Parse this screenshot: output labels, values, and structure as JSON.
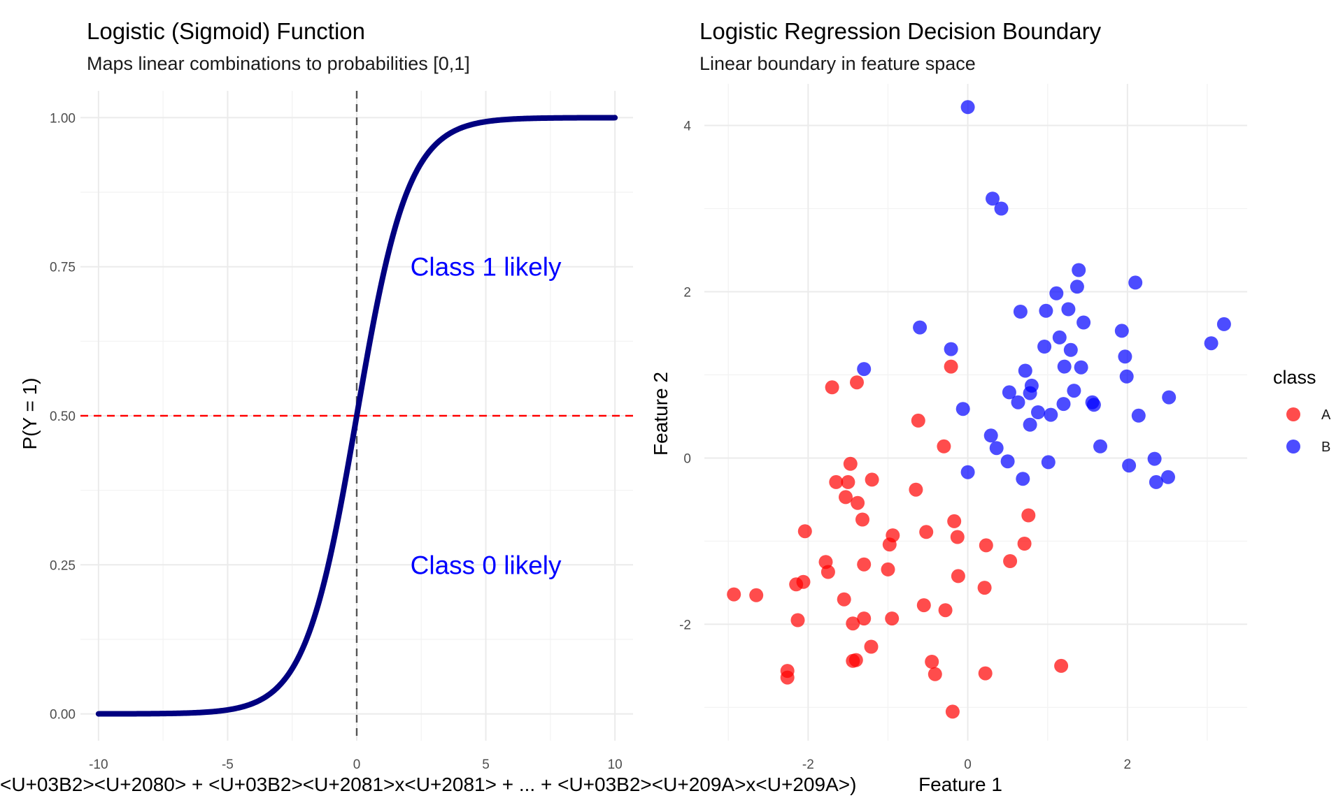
{
  "chart_data": [
    {
      "type": "line",
      "title": "Logistic (Sigmoid) Function",
      "subtitle": "Maps linear combinations to probabilities [0,1]",
      "xlabel": "<U+03B2><U+2080> + <U+03B2><U+2081>x<U+2081> + ... + <U+03B2><U+209A>x<U+209A>)",
      "ylabel": "P(Y = 1)",
      "xlim": [
        -10.7,
        10.7
      ],
      "ylim": [
        -0.045,
        1.045
      ],
      "xticks": [
        -10,
        -5,
        0,
        5,
        10
      ],
      "xtick_labels": [
        "-10",
        "-5",
        "0",
        "5",
        "10"
      ],
      "yticks": [
        0,
        0.25,
        0.5,
        0.75,
        1
      ],
      "ytick_labels": [
        "0.00",
        "0.25",
        "0.50",
        "0.75",
        "1.00"
      ],
      "grid": true,
      "series": [
        {
          "function": "sigmoid",
          "x_range": [
            -10,
            10
          ],
          "color": "#000080"
        }
      ],
      "reference_lines": [
        {
          "orientation": "horizontal",
          "value": 0.5,
          "style": "dashed",
          "color": "#ff0000"
        },
        {
          "orientation": "vertical",
          "value": 0,
          "style": "dashed",
          "color": "#555555"
        }
      ],
      "annotations": [
        {
          "text": "Class 1 likely",
          "x": 5,
          "y": 0.75,
          "color": "#0000ff"
        },
        {
          "text": "Class 0 likely",
          "x": 5,
          "y": 0.25,
          "color": "#0000ff"
        }
      ]
    },
    {
      "type": "scatter",
      "title": "Logistic Regression Decision Boundary",
      "subtitle": "Linear boundary in feature space",
      "xlabel": "Feature 1",
      "ylabel": "Feature 2",
      "xlim": [
        -3.3,
        3.5
      ],
      "ylim": [
        -3.4,
        4.5
      ],
      "xticks": [
        -2,
        0,
        2
      ],
      "xtick_labels": [
        "-2",
        "0",
        "2"
      ],
      "yticks": [
        -2,
        0,
        2,
        4
      ],
      "ytick_labels": [
        "-2",
        "0",
        "2",
        "4"
      ],
      "grid": true,
      "legend": {
        "title": "class",
        "position": "right",
        "entries": [
          {
            "label": "A",
            "color": "#ff0000"
          },
          {
            "label": "B",
            "color": "#0000ff"
          }
        ]
      },
      "series": [
        {
          "name": "A",
          "color": "#ff0000",
          "points": [
            [
              -2.93,
              -1.64
            ],
            [
              -2.65,
              -1.65
            ],
            [
              -2.26,
              -2.56
            ],
            [
              -2.26,
              -2.64
            ],
            [
              -2.15,
              -1.52
            ],
            [
              -2.06,
              -1.49
            ],
            [
              -2.13,
              -1.95
            ],
            [
              -2.04,
              -0.88
            ],
            [
              -1.7,
              0.85
            ],
            [
              -1.39,
              0.91
            ],
            [
              -1.78,
              -1.25
            ],
            [
              -1.75,
              -1.37
            ],
            [
              -1.65,
              -0.29
            ],
            [
              -1.53,
              -0.47
            ],
            [
              -1.5,
              -0.29
            ],
            [
              -1.47,
              -0.07
            ],
            [
              -1.55,
              -1.7
            ],
            [
              -1.44,
              -1.99
            ],
            [
              -1.44,
              -2.44
            ],
            [
              -1.4,
              -2.43
            ],
            [
              -1.38,
              -0.54
            ],
            [
              -1.32,
              -0.74
            ],
            [
              -1.3,
              -1.28
            ],
            [
              -1.3,
              -1.93
            ],
            [
              -1.2,
              -0.26
            ],
            [
              -1.21,
              -2.27
            ],
            [
              -1.0,
              -1.34
            ],
            [
              -0.98,
              -1.04
            ],
            [
              -0.95,
              -1.93
            ],
            [
              -0.94,
              -0.93
            ],
            [
              -0.65,
              -0.38
            ],
            [
              -0.62,
              0.45
            ],
            [
              -0.55,
              -1.77
            ],
            [
              -0.52,
              -0.89
            ],
            [
              -0.45,
              -2.45
            ],
            [
              -0.41,
              -2.6
            ],
            [
              -0.3,
              0.14
            ],
            [
              -0.28,
              -1.83
            ],
            [
              -0.21,
              1.1
            ],
            [
              -0.17,
              -0.76
            ],
            [
              -0.13,
              -0.95
            ],
            [
              -0.12,
              -1.42
            ],
            [
              0.23,
              -1.05
            ],
            [
              0.21,
              -1.56
            ],
            [
              0.22,
              -2.59
            ],
            [
              0.53,
              -1.24
            ],
            [
              0.71,
              -1.03
            ],
            [
              0.76,
              -0.69
            ],
            [
              1.17,
              -2.5
            ],
            [
              -0.19,
              -3.05
            ]
          ]
        },
        {
          "name": "B",
          "color": "#0000ff",
          "points": [
            [
              0.0,
              4.22
            ],
            [
              0.31,
              3.12
            ],
            [
              0.42,
              3.0
            ],
            [
              -1.3,
              1.07
            ],
            [
              -0.6,
              1.57
            ],
            [
              -0.21,
              1.31
            ],
            [
              -0.06,
              0.59
            ],
            [
              0.0,
              -0.17
            ],
            [
              0.29,
              0.27
            ],
            [
              0.36,
              0.12
            ],
            [
              0.5,
              -0.04
            ],
            [
              0.52,
              0.79
            ],
            [
              0.63,
              0.67
            ],
            [
              0.66,
              1.76
            ],
            [
              0.69,
              -0.25
            ],
            [
              0.72,
              1.05
            ],
            [
              0.78,
              0.4
            ],
            [
              0.78,
              0.78
            ],
            [
              0.8,
              0.87
            ],
            [
              0.88,
              0.55
            ],
            [
              0.96,
              1.34
            ],
            [
              0.98,
              1.77
            ],
            [
              1.01,
              -0.05
            ],
            [
              1.04,
              0.52
            ],
            [
              1.11,
              1.98
            ],
            [
              1.15,
              1.45
            ],
            [
              1.2,
              0.65
            ],
            [
              1.21,
              1.1
            ],
            [
              1.26,
              1.79
            ],
            [
              1.29,
              1.3
            ],
            [
              1.33,
              0.81
            ],
            [
              1.37,
              2.06
            ],
            [
              1.39,
              2.26
            ],
            [
              1.42,
              1.09
            ],
            [
              1.45,
              1.63
            ],
            [
              1.56,
              0.67
            ],
            [
              1.58,
              0.64
            ],
            [
              1.66,
              0.14
            ],
            [
              1.93,
              1.53
            ],
            [
              1.97,
              1.22
            ],
            [
              1.99,
              0.98
            ],
            [
              2.02,
              -0.09
            ],
            [
              2.1,
              2.11
            ],
            [
              2.14,
              0.51
            ],
            [
              2.34,
              -0.01
            ],
            [
              2.36,
              -0.29
            ],
            [
              2.51,
              -0.23
            ],
            [
              2.52,
              0.73
            ],
            [
              3.05,
              1.38
            ],
            [
              3.21,
              1.61
            ]
          ]
        }
      ]
    }
  ]
}
